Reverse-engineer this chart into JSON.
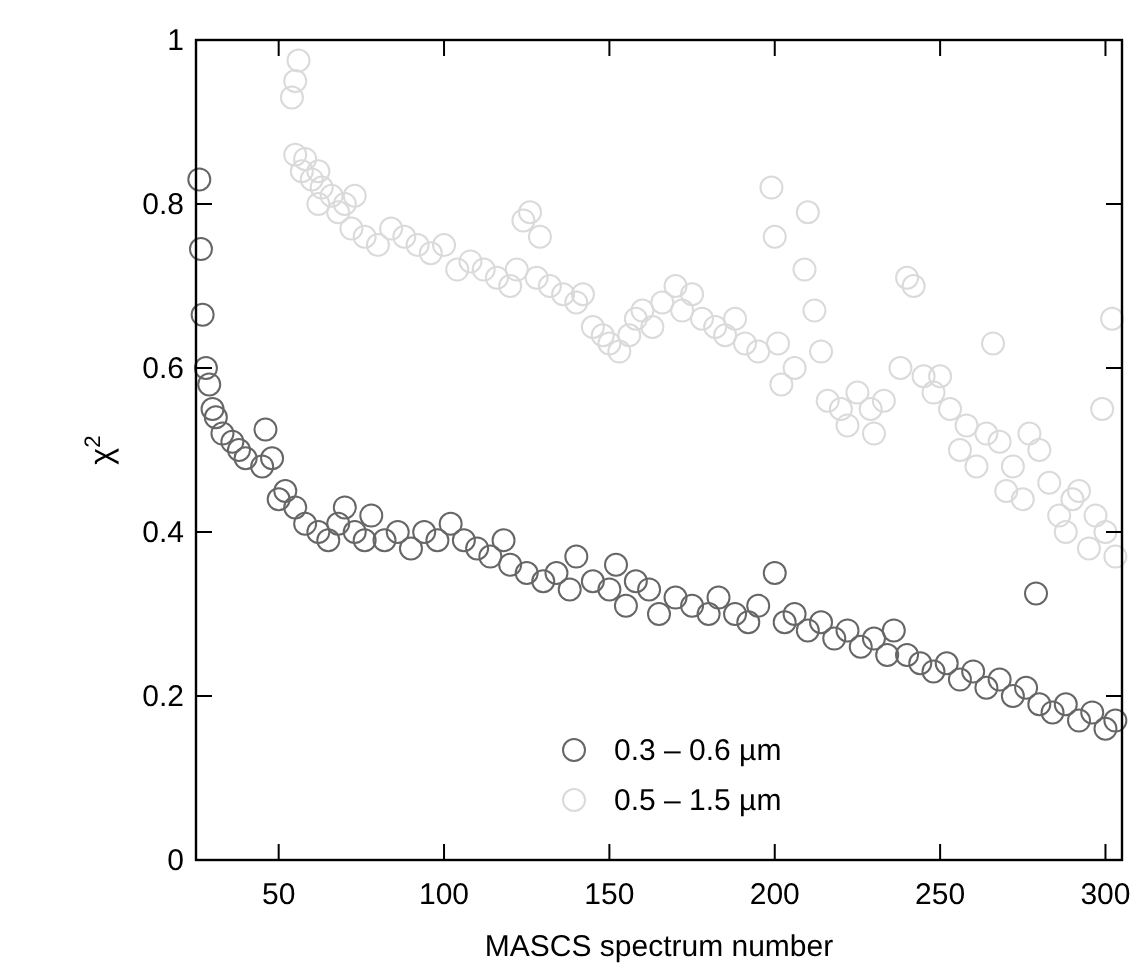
{
  "chart_data": {
    "type": "scatter",
    "xlabel": "MASCS spectrum number",
    "ylabel": "χ$^{2}$",
    "xlim": [
      25,
      305
    ],
    "ylim": [
      0,
      1
    ],
    "xticks": [
      50,
      100,
      150,
      200,
      250,
      300
    ],
    "yticks": [
      0,
      0.2,
      0.4,
      0.6,
      0.8,
      1
    ],
    "marker": "circle",
    "legend": "bottom",
    "grid": false,
    "series": [
      {
        "name": "0.3 – 0.6 µm",
        "color": "#666666",
        "x": [
          26,
          26.5,
          27,
          28,
          29,
          30,
          31,
          33,
          36,
          38,
          40,
          45,
          46,
          48,
          50,
          52,
          55,
          58,
          62,
          65,
          68,
          70,
          73,
          76,
          78,
          82,
          86,
          90,
          94,
          98,
          102,
          106,
          110,
          114,
          118,
          120,
          125,
          130,
          134,
          138,
          140,
          145,
          150,
          152,
          155,
          158,
          162,
          165,
          170,
          175,
          180,
          183,
          188,
          192,
          195,
          200,
          203,
          206,
          210,
          214,
          218,
          222,
          226,
          230,
          234,
          236,
          240,
          244,
          248,
          252,
          256,
          260,
          264,
          268,
          272,
          276,
          279,
          280,
          284,
          288,
          292,
          296,
          300,
          303
        ],
        "values": [
          0.83,
          0.745,
          0.665,
          0.6,
          0.58,
          0.55,
          0.54,
          0.52,
          0.51,
          0.5,
          0.49,
          0.48,
          0.525,
          0.49,
          0.44,
          0.45,
          0.43,
          0.41,
          0.4,
          0.39,
          0.41,
          0.43,
          0.4,
          0.39,
          0.42,
          0.39,
          0.4,
          0.38,
          0.4,
          0.39,
          0.41,
          0.39,
          0.38,
          0.37,
          0.39,
          0.36,
          0.35,
          0.34,
          0.35,
          0.33,
          0.37,
          0.34,
          0.33,
          0.36,
          0.31,
          0.34,
          0.33,
          0.3,
          0.32,
          0.31,
          0.3,
          0.32,
          0.3,
          0.29,
          0.31,
          0.35,
          0.29,
          0.3,
          0.28,
          0.29,
          0.27,
          0.28,
          0.26,
          0.27,
          0.25,
          0.28,
          0.25,
          0.24,
          0.23,
          0.24,
          0.22,
          0.23,
          0.21,
          0.22,
          0.2,
          0.21,
          0.325,
          0.19,
          0.18,
          0.19,
          0.17,
          0.18,
          0.16,
          0.17
        ]
      },
      {
        "name": "0.5 – 1.5 µm",
        "color": "#dadada",
        "x": [
          54,
          55,
          56,
          55,
          58,
          57,
          60,
          62,
          63,
          62,
          66,
          68,
          70,
          73,
          72,
          76,
          80,
          84,
          88,
          92,
          96,
          100,
          104,
          108,
          112,
          116,
          120,
          122,
          124,
          126,
          129,
          128,
          132,
          136,
          140,
          142,
          145,
          148,
          150,
          153,
          156,
          158,
          160,
          163,
          166,
          170,
          172,
          175,
          178,
          182,
          185,
          188,
          191,
          195,
          199,
          200,
          201,
          202,
          206,
          210,
          209,
          212,
          214,
          216,
          220,
          222,
          225,
          229,
          230,
          233,
          238,
          240,
          242,
          245,
          248,
          250,
          253,
          256,
          258,
          261,
          264,
          266,
          268,
          270,
          272,
          275,
          277,
          280,
          283,
          286,
          288,
          290,
          292,
          295,
          297,
          299,
          300,
          302,
          303
        ],
        "values": [
          0.93,
          0.95,
          0.975,
          0.86,
          0.855,
          0.84,
          0.83,
          0.84,
          0.82,
          0.8,
          0.81,
          0.79,
          0.8,
          0.81,
          0.77,
          0.76,
          0.75,
          0.77,
          0.76,
          0.75,
          0.74,
          0.75,
          0.72,
          0.73,
          0.72,
          0.71,
          0.7,
          0.72,
          0.78,
          0.79,
          0.76,
          0.71,
          0.7,
          0.69,
          0.68,
          0.69,
          0.65,
          0.64,
          0.63,
          0.62,
          0.64,
          0.66,
          0.67,
          0.65,
          0.68,
          0.7,
          0.67,
          0.69,
          0.66,
          0.65,
          0.64,
          0.66,
          0.63,
          0.62,
          0.82,
          0.76,
          0.63,
          0.58,
          0.6,
          0.79,
          0.72,
          0.67,
          0.62,
          0.56,
          0.55,
          0.53,
          0.57,
          0.55,
          0.52,
          0.56,
          0.6,
          0.71,
          0.7,
          0.59,
          0.57,
          0.59,
          0.55,
          0.5,
          0.53,
          0.48,
          0.52,
          0.63,
          0.51,
          0.45,
          0.48,
          0.44,
          0.52,
          0.5,
          0.46,
          0.42,
          0.4,
          0.44,
          0.45,
          0.38,
          0.42,
          0.55,
          0.4,
          0.66,
          0.37
        ]
      }
    ]
  }
}
